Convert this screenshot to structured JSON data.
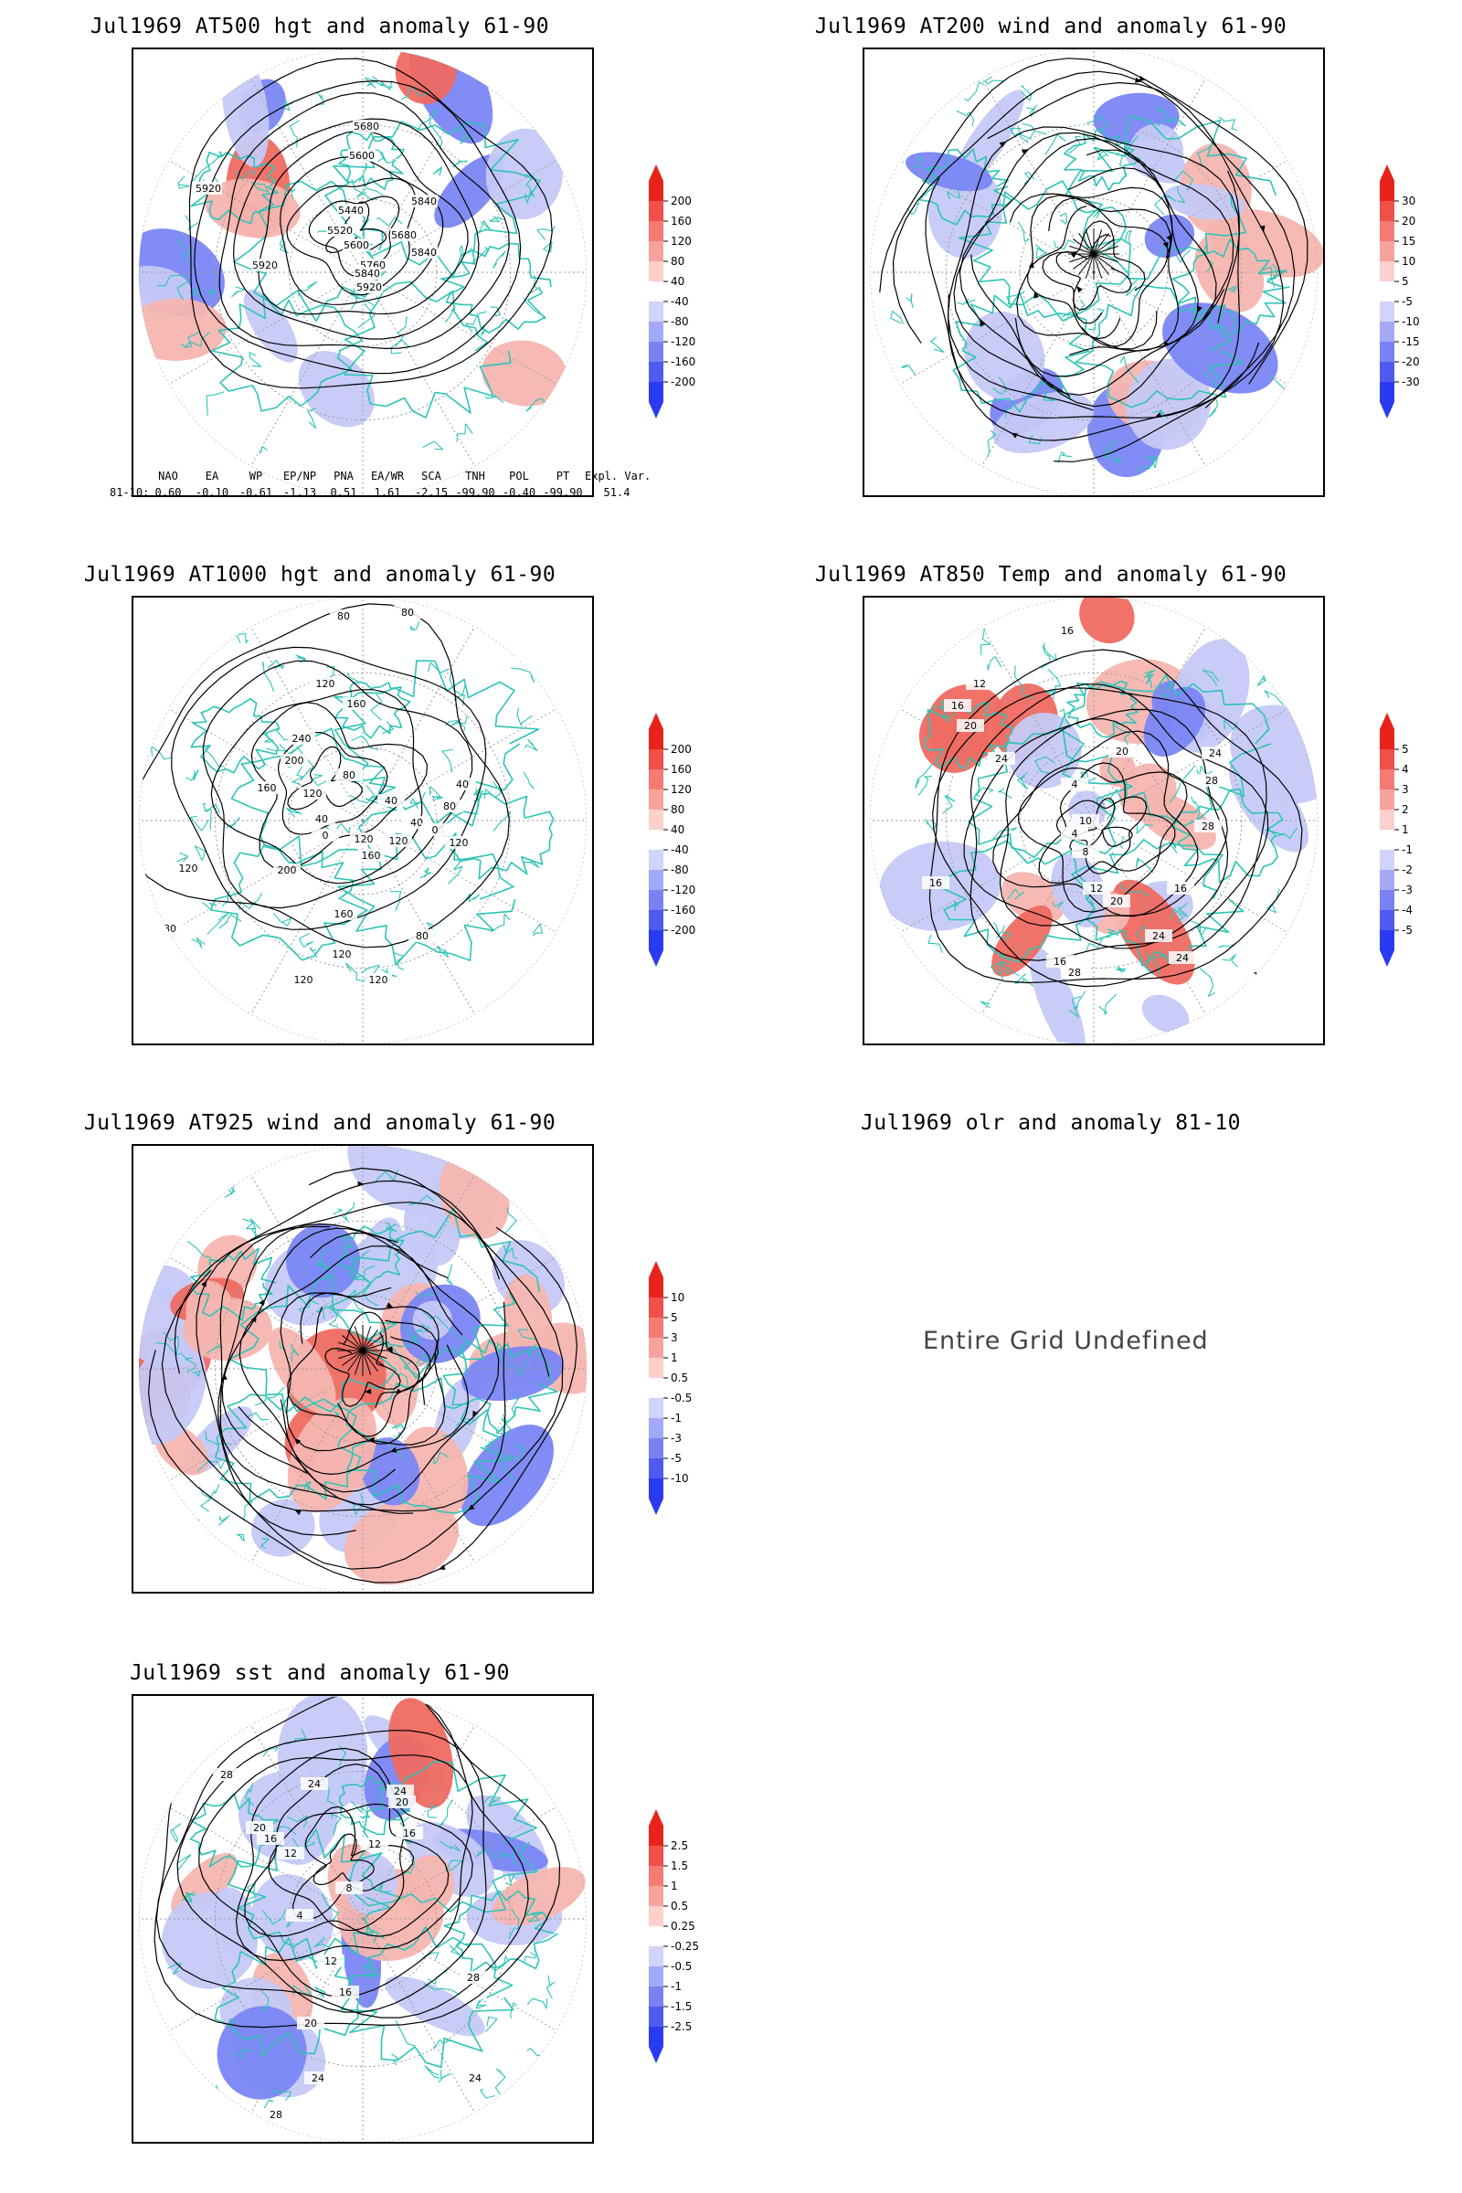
{
  "panels": [
    {
      "id": "p500",
      "title": "Jul1969 AT500 hgt and anomaly 61-90",
      "contour_labels": [
        "5680",
        "5600",
        "5440",
        "5920",
        "5840",
        "5680",
        "5600",
        "5520",
        "5760",
        "5840",
        "5920",
        "5840",
        "5920"
      ],
      "colorbar": [
        "200",
        "160",
        "120",
        "80",
        "40",
        "-40",
        "-80",
        "-120",
        "-160",
        "-200"
      ]
    },
    {
      "id": "p200",
      "title": "Jul1969 AT200 wind and anomaly 61-90",
      "contour_labels": [],
      "colorbar": [
        "30",
        "20",
        "15",
        "10",
        "5",
        "-5",
        "-10",
        "-15",
        "-20",
        "-30"
      ]
    },
    {
      "id": "p1000",
      "title": "Jul1969 AT1000 hgt and anomaly 61-90",
      "contour_labels": [
        "80",
        "80",
        "120",
        "160",
        "240",
        "200",
        "80",
        "120",
        "160",
        "40",
        "0",
        "120",
        "40",
        "40",
        "80",
        "40",
        "0",
        "120",
        "200",
        "160",
        "120",
        "160",
        "120",
        "80",
        "120",
        "120",
        "80",
        "120"
      ],
      "colorbar": [
        "200",
        "160",
        "120",
        "80",
        "40",
        "-40",
        "-80",
        "-120",
        "-160",
        "-200"
      ]
    },
    {
      "id": "p850",
      "title": "Jul1969 AT850 Temp and anomaly 61-90",
      "contour_labels": [
        "16",
        "12",
        "16",
        "20",
        "24",
        "4",
        "20",
        "24",
        "28",
        "10",
        "4",
        "8",
        "12",
        "28",
        "16",
        "20",
        "16",
        "28",
        "24",
        "16",
        "24",
        "16"
      ],
      "colorbar": [
        "5",
        "4",
        "3",
        "2",
        "1",
        "-1",
        "-2",
        "-3",
        "-4",
        "-5"
      ]
    },
    {
      "id": "p925",
      "title": "Jul1969 AT925 wind and anomaly 61-90",
      "contour_labels": [],
      "colorbar": [
        "10",
        "5",
        "3",
        "1",
        "0.5",
        "-0.5",
        "-1",
        "-3",
        "-5",
        "-10"
      ]
    },
    {
      "id": "polr",
      "title": "Jul1969 olr and anomaly 81-10",
      "message": "Entire Grid Undefined"
    },
    {
      "id": "psst",
      "title": "Jul1969 sst and anomaly 61-90",
      "contour_labels": [
        "28",
        "24",
        "20",
        "24",
        "20",
        "16",
        "12",
        "16",
        "12",
        "8",
        "4",
        "12",
        "16",
        "20",
        "24",
        "28",
        "24",
        "28"
      ],
      "colorbar": [
        "2.5",
        "1.5",
        "1",
        "0.5",
        "0.25",
        "-0.25",
        "-0.5",
        "-1",
        "-1.5",
        "-2.5"
      ]
    }
  ],
  "indices": {
    "headers": [
      "NAO",
      "EA",
      "WP",
      "EP/NP",
      "PNA",
      "EA/WR",
      "SCA",
      "TNH",
      "POL",
      "PT",
      "Expl. Var."
    ],
    "row_label": "81-10:",
    "values": [
      "0.60",
      "-0.10",
      "-0.61",
      "-1.13",
      "0.51",
      "1.61",
      "-2.15",
      "-99.90",
      "-0.40",
      "-99.90",
      "51.4"
    ]
  },
  "colors": {
    "land": "#2ec4b6",
    "contour": "#000000",
    "positive": "#e0302b",
    "negative": "#2a3bef",
    "grid": "#9a9a9a"
  }
}
